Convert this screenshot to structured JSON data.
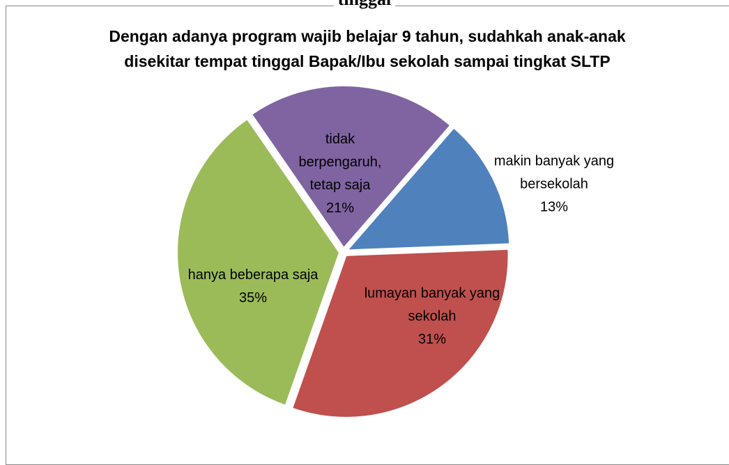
{
  "header_text": "tinggal",
  "chart_data": {
    "type": "pie",
    "title": "Dengan adanya program wajib belajar 9 tahun, sudahkah anak-anak disekitar tempat tinggal Bapak/Ibu sekolah sampai tingkat SLTP",
    "categories": [
      "makin banyak yang bersekolah",
      "lumayan banyak yang sekolah",
      "hanya beberapa saja",
      "tidak berpengaruh, tetap saja"
    ],
    "values": [
      13,
      31,
      35,
      21
    ],
    "value_labels": [
      "13%",
      "31%",
      "35%",
      "21%"
    ],
    "colors": [
      "#4f81bd",
      "#c0504d",
      "#9bbb59",
      "#8064a2"
    ]
  }
}
